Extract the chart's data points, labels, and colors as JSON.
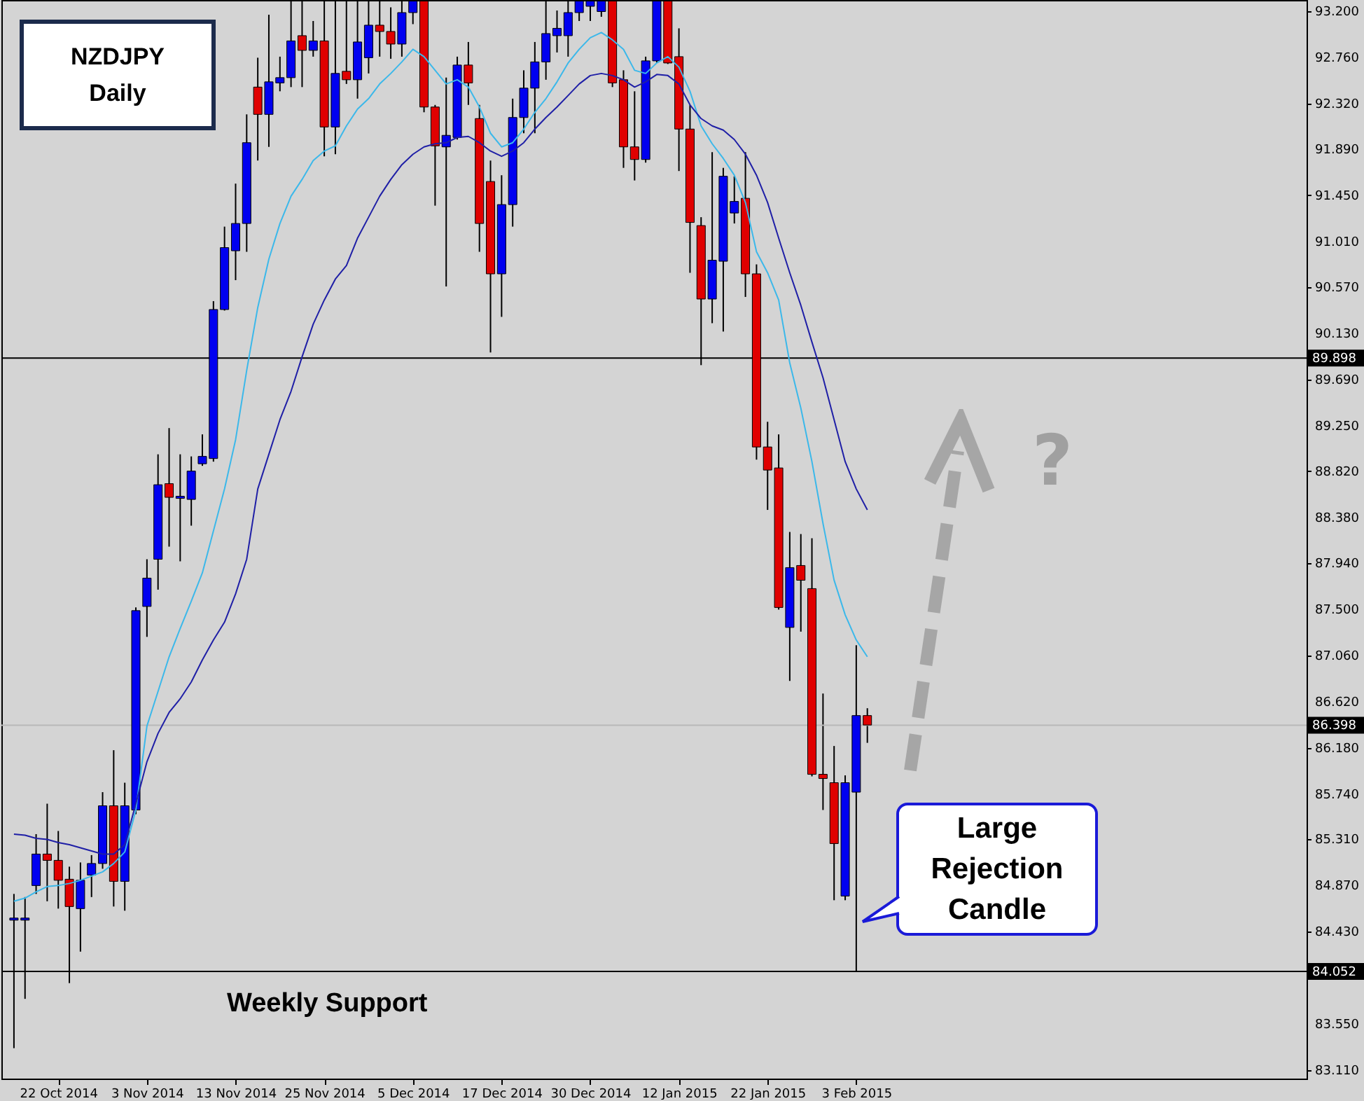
{
  "chart_data": {
    "type": "candlestick",
    "title": "NZDJPY Daily",
    "annotations": [
      "Weekly Support",
      "Large Rejection Candle",
      "?"
    ],
    "categories": [
      null,
      null,
      null,
      null,
      "22 Oct 2014",
      null,
      null,
      null,
      null,
      null,
      null,
      null,
      "3 Nov 2014",
      null,
      null,
      null,
      null,
      null,
      null,
      null,
      "13 Nov 2014",
      null,
      null,
      null,
      null,
      null,
      null,
      null,
      "25 Nov 2014",
      null,
      null,
      null,
      null,
      null,
      null,
      null,
      "5 Dec 2014",
      null,
      null,
      null,
      null,
      null,
      null,
      null,
      "17 Dec 2014",
      null,
      null,
      null,
      null,
      null,
      null,
      null,
      "30 Dec 2014",
      null,
      null,
      null,
      null,
      null,
      null,
      null,
      "12 Jan 2015",
      null,
      null,
      null,
      null,
      null,
      null,
      null,
      "22 Jan 2015",
      null,
      null,
      null,
      null,
      null,
      null,
      null,
      "3 Feb 2015",
      null
    ],
    "ohlc": [
      [
        84.54,
        84.79,
        83.32,
        84.56
      ],
      [
        84.54,
        84.76,
        83.79,
        84.56
      ],
      [
        84.87,
        85.36,
        84.79,
        85.17
      ],
      [
        85.17,
        85.65,
        84.72,
        85.11
      ],
      [
        85.11,
        85.39,
        84.65,
        84.92
      ],
      [
        84.93,
        85.05,
        83.94,
        84.67
      ],
      [
        84.65,
        85.09,
        84.24,
        84.92
      ],
      [
        84.97,
        85.16,
        84.76,
        85.08
      ],
      [
        85.08,
        85.76,
        85.03,
        85.63
      ],
      [
        85.63,
        86.16,
        84.67,
        84.91
      ],
      [
        84.91,
        85.85,
        84.63,
        85.63
      ],
      [
        85.59,
        87.52,
        85.55,
        87.49
      ],
      [
        87.53,
        87.98,
        87.24,
        87.8
      ],
      [
        87.98,
        88.98,
        87.69,
        88.69
      ],
      [
        88.7,
        89.23,
        88.1,
        88.57
      ],
      [
        88.56,
        88.98,
        87.96,
        88.58
      ],
      [
        88.55,
        88.96,
        88.3,
        88.82
      ],
      [
        88.89,
        89.17,
        88.87,
        88.96
      ],
      [
        88.94,
        90.44,
        88.91,
        90.36
      ],
      [
        90.36,
        91.15,
        90.35,
        90.95
      ],
      [
        90.92,
        91.56,
        90.64,
        91.18
      ],
      [
        91.18,
        92.22,
        90.91,
        91.95
      ],
      [
        92.48,
        92.76,
        91.78,
        92.22
      ],
      [
        92.22,
        93.17,
        91.91,
        92.53
      ],
      [
        92.52,
        92.77,
        92.44,
        92.57
      ],
      [
        92.57,
        93.3,
        92.48,
        92.92
      ],
      [
        92.97,
        93.3,
        92.48,
        92.83
      ],
      [
        92.83,
        93.11,
        92.77,
        92.92
      ],
      [
        92.92,
        93.3,
        91.82,
        92.1
      ],
      [
        92.1,
        93.3,
        91.84,
        92.61
      ],
      [
        92.63,
        93.3,
        92.51,
        92.55
      ],
      [
        92.55,
        93.3,
        92.37,
        92.91
      ],
      [
        92.76,
        93.3,
        92.61,
        93.07
      ],
      [
        93.07,
        93.3,
        92.77,
        93.01
      ],
      [
        93.01,
        93.24,
        92.75,
        92.89
      ],
      [
        92.89,
        93.3,
        92.77,
        93.19
      ],
      [
        93.19,
        93.3,
        93.08,
        93.3
      ],
      [
        93.3,
        93.3,
        92.24,
        92.29
      ],
      [
        92.29,
        92.31,
        91.35,
        91.92
      ],
      [
        91.91,
        92.57,
        90.58,
        92.02
      ],
      [
        92.0,
        92.77,
        91.98,
        92.69
      ],
      [
        92.69,
        92.91,
        92.31,
        92.52
      ],
      [
        92.18,
        92.31,
        90.91,
        91.18
      ],
      [
        91.58,
        91.78,
        89.95,
        90.7
      ],
      [
        90.7,
        91.64,
        90.29,
        91.36
      ],
      [
        91.36,
        92.37,
        91.15,
        92.19
      ],
      [
        92.19,
        92.64,
        92.04,
        92.47
      ],
      [
        92.47,
        92.91,
        92.04,
        92.72
      ],
      [
        92.72,
        93.3,
        92.55,
        92.99
      ],
      [
        92.97,
        93.21,
        92.81,
        93.04
      ],
      [
        92.97,
        93.3,
        92.77,
        93.19
      ],
      [
        93.19,
        93.3,
        93.11,
        93.3
      ],
      [
        93.25,
        93.3,
        93.11,
        93.3
      ],
      [
        93.2,
        93.3,
        93.15,
        93.3
      ],
      [
        93.3,
        93.3,
        92.48,
        92.52
      ],
      [
        92.55,
        92.64,
        91.71,
        91.91
      ],
      [
        91.91,
        92.44,
        91.59,
        91.79
      ],
      [
        91.79,
        92.77,
        91.76,
        92.73
      ],
      [
        92.73,
        93.3,
        92.71,
        93.3
      ],
      [
        93.3,
        93.3,
        92.7,
        92.71
      ],
      [
        92.77,
        93.04,
        91.68,
        92.08
      ],
      [
        92.08,
        92.31,
        90.71,
        91.19
      ],
      [
        91.16,
        91.24,
        89.83,
        90.46
      ],
      [
        90.46,
        91.86,
        90.23,
        90.83
      ],
      [
        90.82,
        91.71,
        90.15,
        91.63
      ],
      [
        91.28,
        91.63,
        91.18,
        91.39
      ],
      [
        91.42,
        91.86,
        90.48,
        90.7
      ],
      [
        90.7,
        90.79,
        88.93,
        89.05
      ],
      [
        89.05,
        89.29,
        88.45,
        88.83
      ],
      [
        88.85,
        89.17,
        87.5,
        87.52
      ],
      [
        87.33,
        88.24,
        86.82,
        87.9
      ],
      [
        87.92,
        88.22,
        87.29,
        87.78
      ],
      [
        87.7,
        88.18,
        85.91,
        85.93
      ],
      [
        85.93,
        86.7,
        85.59,
        85.89
      ],
      [
        85.85,
        86.2,
        84.73,
        85.27
      ],
      [
        84.77,
        85.92,
        84.73,
        85.85
      ],
      [
        85.76,
        87.16,
        84.05,
        86.49
      ],
      [
        86.49,
        86.56,
        86.23,
        86.4
      ]
    ],
    "series": [
      {
        "type": "line",
        "color": "#3bb8ea",
        "values": [
          84.72,
          84.75,
          84.81,
          84.86,
          84.87,
          84.89,
          84.92,
          84.96,
          85.0,
          85.08,
          85.19,
          85.59,
          86.39,
          86.72,
          87.05,
          87.32,
          87.58,
          87.85,
          88.25,
          88.65,
          89.12,
          89.78,
          90.38,
          90.84,
          91.18,
          91.44,
          91.6,
          91.78,
          91.87,
          91.92,
          92.11,
          92.27,
          92.37,
          92.51,
          92.61,
          92.72,
          92.84,
          92.77,
          92.64,
          92.51,
          92.55,
          92.48,
          92.29,
          92.04,
          91.91,
          91.95,
          92.08,
          92.24,
          92.37,
          92.53,
          92.71,
          92.84,
          92.95,
          93.0,
          92.93,
          92.84,
          92.64,
          92.61,
          92.71,
          92.77,
          92.67,
          92.44,
          92.11,
          91.94,
          91.8,
          91.64,
          91.38,
          90.91,
          90.71,
          90.45,
          89.85,
          89.42,
          88.91,
          88.32,
          87.78,
          87.45,
          87.21,
          87.05
        ]
      },
      {
        "type": "line",
        "color": "#1f1fa6",
        "values": [
          85.36,
          85.35,
          85.32,
          85.31,
          85.28,
          85.26,
          85.23,
          85.2,
          85.17,
          85.17,
          85.26,
          85.65,
          86.05,
          86.32,
          86.52,
          86.65,
          86.81,
          87.02,
          87.21,
          87.38,
          87.65,
          87.98,
          88.65,
          88.98,
          89.31,
          89.58,
          89.91,
          90.22,
          90.45,
          90.65,
          90.78,
          91.04,
          91.24,
          91.44,
          91.6,
          91.74,
          91.84,
          91.91,
          91.94,
          91.95,
          92.0,
          92.01,
          91.95,
          91.87,
          91.82,
          91.87,
          91.95,
          92.08,
          92.19,
          92.29,
          92.4,
          92.51,
          92.59,
          92.61,
          92.59,
          92.55,
          92.48,
          92.53,
          92.6,
          92.59,
          92.51,
          92.31,
          92.18,
          92.11,
          92.07,
          91.98,
          91.84,
          91.64,
          91.38,
          91.04,
          90.71,
          90.4,
          90.05,
          89.71,
          89.31,
          88.91,
          88.65,
          88.45
        ]
      }
    ],
    "ylim": [
      83.03,
      93.31
    ],
    "yticks": [
      {
        "value": 93.2,
        "label": "93.200"
      },
      {
        "value": 92.76,
        "label": "92.760"
      },
      {
        "value": 92.32,
        "label": "92.320"
      },
      {
        "value": 91.89,
        "label": "91.890"
      },
      {
        "value": 91.45,
        "label": "91.450"
      },
      {
        "value": 91.01,
        "label": "91.010"
      },
      {
        "value": 90.57,
        "label": "90.570"
      },
      {
        "value": 90.13,
        "label": "90.130"
      },
      {
        "value": 89.69,
        "label": "89.690"
      },
      {
        "value": 89.25,
        "label": "89.250"
      },
      {
        "value": 88.82,
        "label": "88.820"
      },
      {
        "value": 88.38,
        "label": "88.380"
      },
      {
        "value": 87.94,
        "label": "87.940"
      },
      {
        "value": 87.5,
        "label": "87.500"
      },
      {
        "value": 87.06,
        "label": "87.060"
      },
      {
        "value": 86.62,
        "label": "86.620"
      },
      {
        "value": 86.18,
        "label": "86.180"
      },
      {
        "value": 85.74,
        "label": "85.740"
      },
      {
        "value": 85.31,
        "label": "85.310"
      },
      {
        "value": 84.87,
        "label": "84.870"
      },
      {
        "value": 84.43,
        "label": "84.430"
      },
      {
        "value": 83.55,
        "label": "83.550"
      },
      {
        "value": 83.11,
        "label": "83.110"
      }
    ],
    "ref_lines": [
      {
        "axis": "y",
        "value": 89.898,
        "label": "89.898",
        "color": "#000000"
      },
      {
        "axis": "y",
        "value": 86.398,
        "label": "86.398",
        "color": "#b8b8b8"
      },
      {
        "axis": "y",
        "value": 84.052,
        "label": "84.052",
        "color": "#000000"
      }
    ],
    "marker": "none",
    "grid": false
  }
}
